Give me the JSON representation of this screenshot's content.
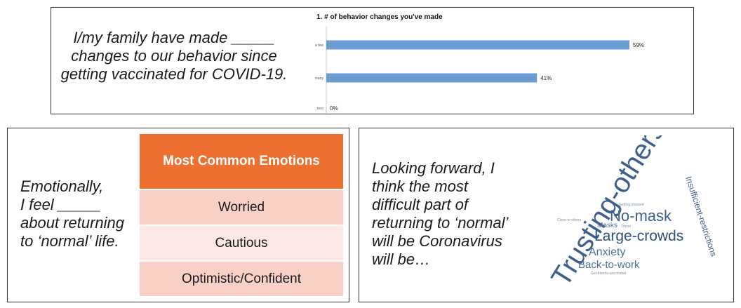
{
  "panel1": {
    "prompt": "I/my family have made _____ changes to our behavior since getting vaccinated for COVID-19."
  },
  "chart_data": {
    "type": "bar",
    "orientation": "horizontal",
    "title": "1. # of behavior changes you've made",
    "categories": [
      "a few",
      "many",
      "zero"
    ],
    "values": [
      59,
      41,
      0
    ],
    "value_labels": [
      "59%",
      "41%",
      "0%"
    ],
    "xlim": [
      0,
      100
    ],
    "grid": false,
    "colors": {
      "bar": "#6a9bd1",
      "axis": "#cccccc"
    }
  },
  "panel2": {
    "prompt_lines": [
      "Emotionally,",
      "I feel _____",
      "about returning",
      "to ‘normal’ life."
    ],
    "table": {
      "header": "Most Common Emotions",
      "rows": [
        "Worried",
        "Cautious",
        "Optimistic/Confident"
      ]
    },
    "colors": {
      "header": "#ed7030",
      "row_dark": "#f8d0c6",
      "row_light": "#fbe8e4"
    }
  },
  "panel3": {
    "prompt_lines": [
      "Looking forward, I",
      "think the most",
      "difficult part of",
      "returning to ‘normal’",
      "will be Coronavirus",
      "will be…"
    ],
    "word_cloud": {
      "words": [
        "Trusting-others",
        "No-mask",
        "Large-crowds",
        "Anxiety",
        "Back-to-work",
        "Insufficient-restrictions",
        "Masks",
        "Travel",
        "Getting-dressed",
        "Close-to-others",
        "Get-friends-vaccinated"
      ],
      "colors": {
        "primary": "#3e5f8a",
        "secondary": "#7a8fa8"
      }
    }
  }
}
